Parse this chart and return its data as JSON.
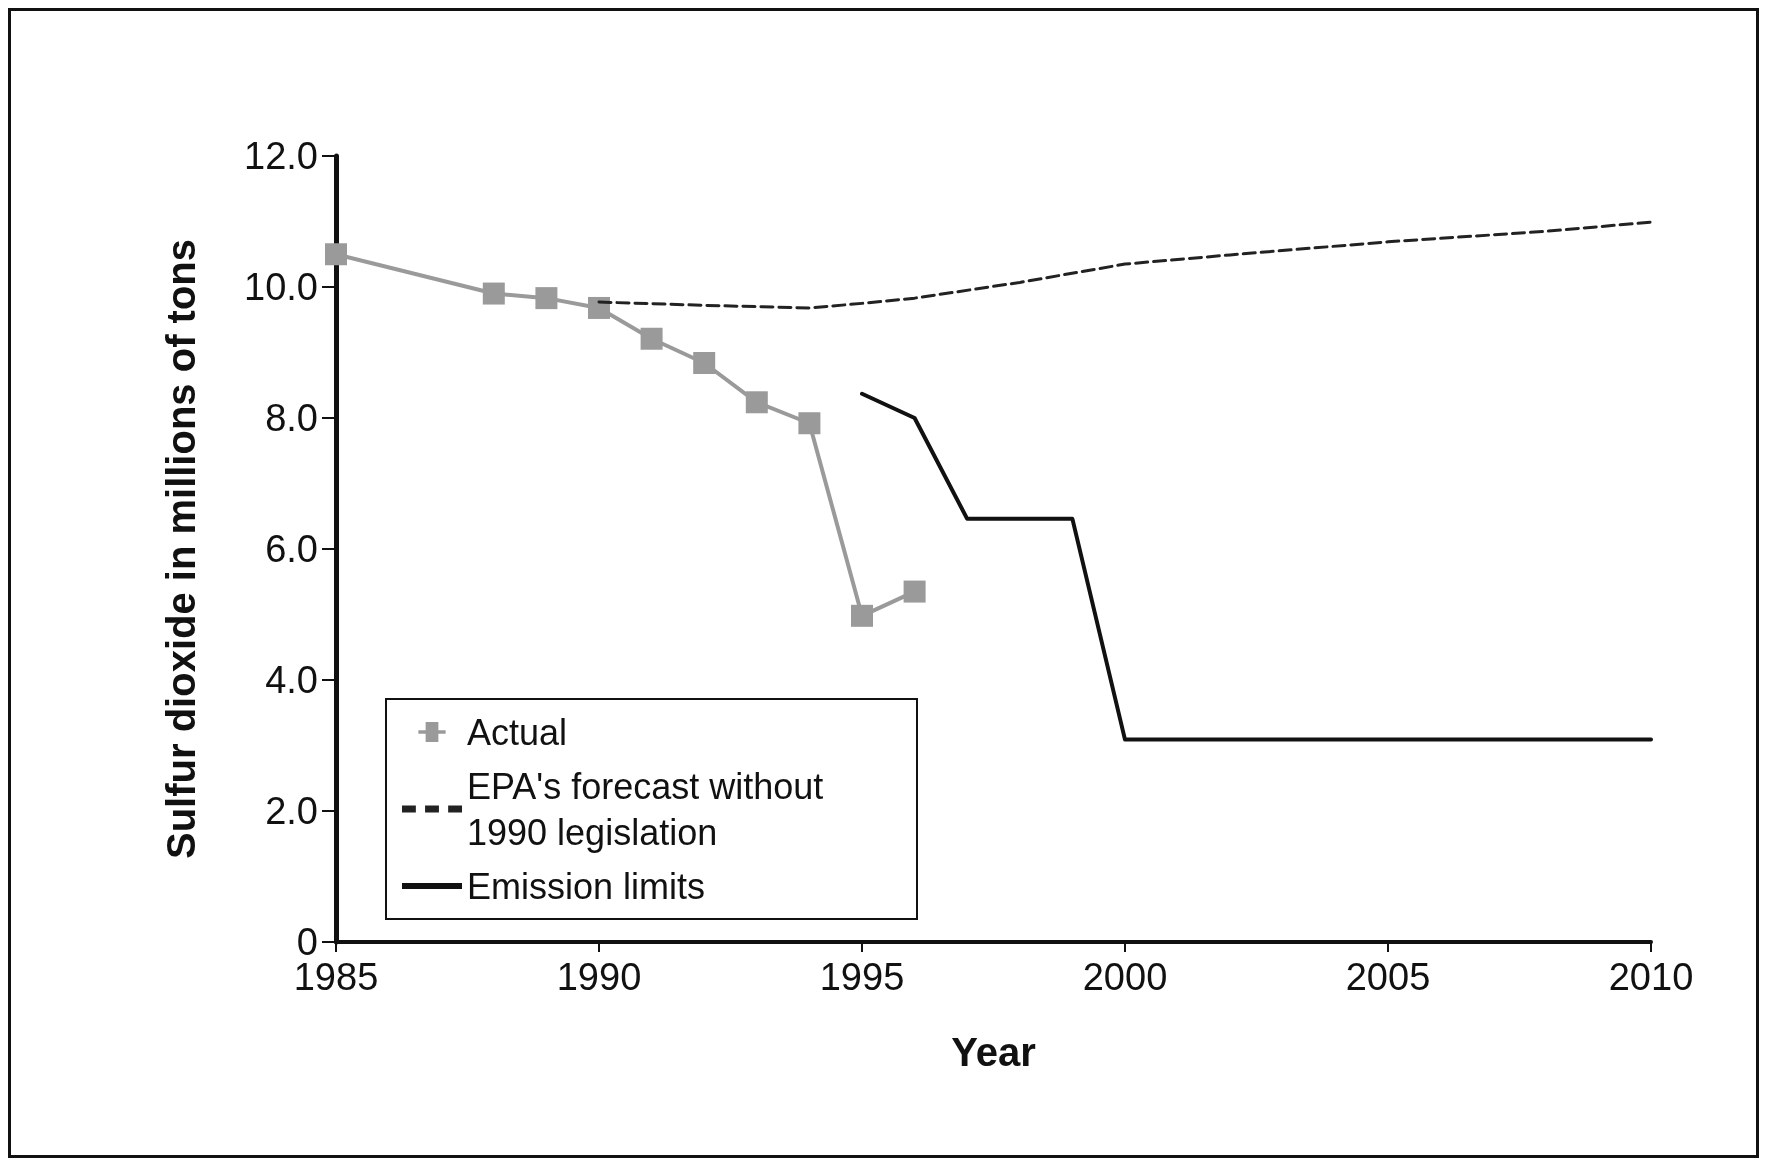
{
  "chart_data": {
    "type": "line",
    "xlabel": "Year",
    "ylabel": "Sulfur dioxide in millions of tons",
    "xlim": [
      1985,
      2010
    ],
    "xticks": [
      1985,
      1990,
      1995,
      2000,
      2005,
      2010
    ],
    "ylim": [
      0,
      12
    ],
    "yticks": [
      0,
      {
        "value": 2,
        "label": "2.0"
      },
      {
        "value": 4,
        "label": "4.0"
      },
      {
        "value": 6,
        "label": "6.0"
      },
      {
        "value": 8,
        "label": "8.0"
      },
      {
        "value": 10,
        "label": "10.0"
      },
      {
        "value": 12,
        "label": "12.0"
      }
    ],
    "grid": false,
    "legend": "bottom left",
    "series": [
      {
        "name": "Actual",
        "color": "#9a9a9a",
        "marker": "square",
        "line_style": "solid",
        "x": [
          1985,
          1988,
          1989,
          1990,
          1991,
          1992,
          1993,
          1994,
          1995,
          1996
        ],
        "values": [
          10.5,
          9.9,
          9.83,
          9.68,
          9.21,
          8.84,
          8.24,
          7.92,
          4.98,
          5.35
        ]
      },
      {
        "name": "EPA's forecast without 1990 legislation",
        "color": "#222222",
        "marker": "none",
        "line_style": "dashed",
        "x": [
          1990,
          1992,
          1994,
          1995,
          1996,
          1998,
          2000,
          2002,
          2005,
          2008,
          2010
        ],
        "values": [
          9.77,
          9.72,
          9.68,
          9.75,
          9.83,
          10.07,
          10.35,
          10.49,
          10.69,
          10.85,
          10.99
        ]
      },
      {
        "name": "Emission limits",
        "color": "#111111",
        "marker": "none",
        "line_style": "solid",
        "x": [
          1995,
          1996,
          1997,
          1999,
          2000,
          2010
        ],
        "values": [
          8.37,
          8.0,
          6.46,
          6.46,
          3.09,
          3.09
        ]
      }
    ]
  }
}
